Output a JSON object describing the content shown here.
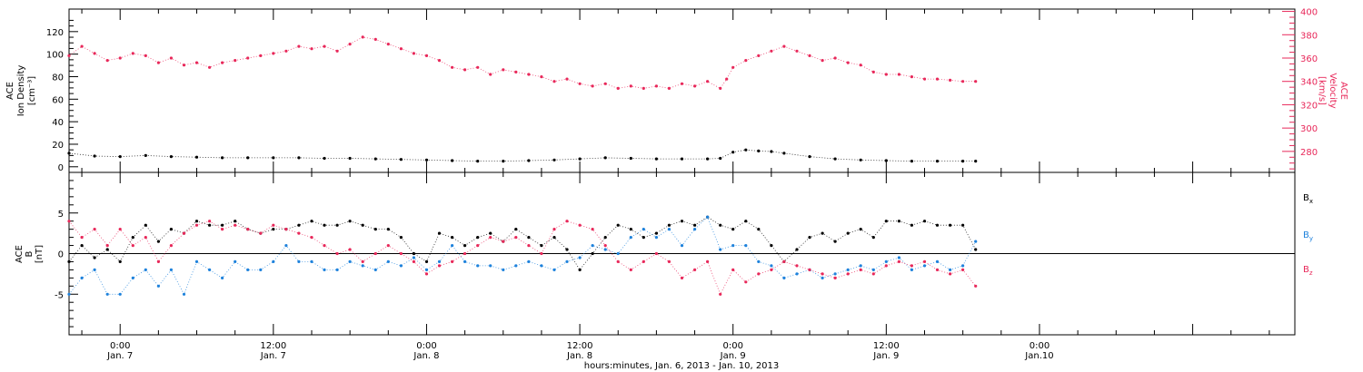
{
  "footer": {
    "xlabel": "hours:minutes, Jan.  6, 2013 - Jan. 10, 2013"
  },
  "colors": {
    "axes": "#000000",
    "density": "#000000",
    "velocity": "#e8285a",
    "bx": "#000000",
    "by": "#1e82dc",
    "bz": "#e8285a"
  },
  "chart_data": [
    {
      "type": "scatter",
      "x_units": "hours since 2013-01-06 00:00 UT",
      "x_range": [
        20.0,
        116.0
      ],
      "x_ticks": [
        {
          "x": 24,
          "time": "0:00",
          "date": "Jan. 7"
        },
        {
          "x": 36,
          "time": "12:00",
          "date": "Jan. 7"
        },
        {
          "x": 48,
          "time": "0:00",
          "date": "Jan. 8"
        },
        {
          "x": 60,
          "time": "12:00",
          "date": "Jan. 8"
        },
        {
          "x": 72,
          "time": "0:00",
          "date": "Jan. 9"
        },
        {
          "x": 84,
          "time": "12:00",
          "date": "Jan. 9"
        },
        {
          "x": 96,
          "time": "0:00",
          "date": "Jan.10"
        }
      ],
      "left_axis": {
        "label_lines": [
          "ACE",
          "Ion Density",
          "[cm⁻³]"
        ],
        "ylim": [
          -5,
          140
        ],
        "ticks": [
          0,
          20,
          40,
          60,
          80,
          100,
          120
        ],
        "tick_labels": [
          "0",
          "20",
          "40",
          "60",
          "80",
          "100",
          "120"
        ]
      },
      "right_axis": {
        "label_lines": [
          "ACE",
          "Velocity",
          "[km/s]"
        ],
        "ylim": [
          262,
          402
        ],
        "ticks": [
          280,
          300,
          320,
          340,
          360,
          380,
          400
        ],
        "tick_labels": [
          "280",
          "300",
          "320",
          "340",
          "360",
          "380",
          "400"
        ]
      },
      "series": [
        {
          "key": "density",
          "axis": "left",
          "color": "#000000",
          "x": [
            20.0,
            22.0,
            24.0,
            26.0,
            28.0,
            30.0,
            32.0,
            34.0,
            36.0,
            38.0,
            40.0,
            42.0,
            44.0,
            46.0,
            48.0,
            50.0,
            52.0,
            54.0,
            56.0,
            58.0,
            60.0,
            62.0,
            64.0,
            66.0,
            68.0,
            70.0,
            71.0,
            72.0,
            73.0,
            74.0,
            75.0,
            76.0,
            78.0,
            80.0,
            82.0,
            84.0,
            86.0,
            88.0,
            90.0,
            91.0
          ],
          "y": [
            12.0,
            9.5,
            9.0,
            10.0,
            9.0,
            8.5,
            8.0,
            8.0,
            8.0,
            8.0,
            7.5,
            7.5,
            7.0,
            6.5,
            6.0,
            5.5,
            5.0,
            5.0,
            5.5,
            6.0,
            7.0,
            8.0,
            7.5,
            7.0,
            7.0,
            7.0,
            7.5,
            13.0,
            15.0,
            14.0,
            13.5,
            12.0,
            9.0,
            7.0,
            6.0,
            5.5,
            5.0,
            5.0,
            5.0,
            5.0
          ]
        },
        {
          "key": "velocity",
          "axis": "right",
          "color": "#e8285a",
          "x": [
            20.0,
            21.0,
            22.0,
            23.0,
            24.0,
            25.0,
            26.0,
            27.0,
            28.0,
            29.0,
            30.0,
            31.0,
            32.0,
            33.0,
            34.0,
            35.0,
            36.0,
            37.0,
            38.0,
            39.0,
            40.0,
            41.0,
            42.0,
            43.0,
            44.0,
            45.0,
            46.0,
            47.0,
            48.0,
            49.0,
            50.0,
            51.0,
            52.0,
            53.0,
            54.0,
            55.0,
            56.0,
            57.0,
            58.0,
            59.0,
            60.0,
            61.0,
            62.0,
            63.0,
            64.0,
            65.0,
            66.0,
            67.0,
            68.0,
            69.0,
            70.0,
            71.0,
            71.5,
            72.0,
            73.0,
            74.0,
            75.0,
            76.0,
            77.0,
            78.0,
            79.0,
            80.0,
            81.0,
            82.0,
            83.0,
            84.0,
            85.0,
            86.0,
            87.0,
            88.0,
            89.0,
            90.0,
            91.0
          ],
          "y": [
            362,
            370,
            364,
            358,
            360,
            364,
            362,
            356,
            360,
            354,
            356,
            352,
            356,
            358,
            360,
            362,
            364,
            366,
            370,
            368,
            370,
            366,
            372,
            378,
            376,
            372,
            368,
            364,
            362,
            358,
            352,
            350,
            352,
            346,
            350,
            348,
            346,
            344,
            340,
            342,
            338,
            336,
            338,
            334,
            336,
            334,
            336,
            334,
            338,
            336,
            340,
            334,
            342,
            352,
            358,
            362,
            366,
            370,
            366,
            362,
            358,
            360,
            356,
            354,
            348,
            346,
            346,
            344,
            342,
            342,
            341,
            340,
            340
          ]
        }
      ]
    },
    {
      "type": "scatter",
      "x_units": "hours since 2013-01-06 00:00 UT",
      "x_range": [
        20.0,
        116.0
      ],
      "left_axis": {
        "label_lines": [
          "ACE",
          "B",
          "[nT]"
        ],
        "ylim": [
          -10,
          10
        ],
        "ticks": [
          -5,
          0,
          5
        ],
        "tick_labels": [
          "-5",
          "0",
          "5"
        ],
        "zero_line": true
      },
      "legend": {
        "placement": "right",
        "entries": [
          {
            "key": "bx",
            "label": "Bx",
            "base": "B",
            "sub": "x",
            "color": "#000000"
          },
          {
            "key": "by",
            "label": "By",
            "base": "B",
            "sub": "y",
            "color": "#1e82dc"
          },
          {
            "key": "bz",
            "label": "Bz",
            "base": "B",
            "sub": "z",
            "color": "#e8285a"
          }
        ]
      },
      "series": [
        {
          "key": "bx",
          "color": "#000000",
          "x": [
            20.0,
            21.0,
            22.0,
            23.0,
            24.0,
            25.0,
            26.0,
            27.0,
            28.0,
            29.0,
            30.0,
            31.0,
            32.0,
            33.0,
            34.0,
            35.0,
            36.0,
            37.0,
            38.0,
            39.0,
            40.0,
            41.0,
            42.0,
            43.0,
            44.0,
            45.0,
            46.0,
            47.0,
            48.0,
            49.0,
            50.0,
            51.0,
            52.0,
            53.0,
            54.0,
            55.0,
            56.0,
            57.0,
            58.0,
            59.0,
            60.0,
            61.0,
            62.0,
            63.0,
            64.0,
            65.0,
            66.0,
            67.0,
            68.0,
            69.0,
            70.0,
            71.0,
            72.0,
            73.0,
            74.0,
            75.0,
            76.0,
            77.0,
            78.0,
            79.0,
            80.0,
            81.0,
            82.0,
            83.0,
            84.0,
            85.0,
            86.0,
            87.0,
            88.0,
            89.0,
            90.0,
            91.0
          ],
          "y": [
            -1.0,
            1.0,
            -0.5,
            0.5,
            -1.0,
            2.0,
            3.5,
            1.5,
            3.0,
            2.5,
            4.0,
            3.5,
            3.5,
            4.0,
            3.0,
            2.5,
            3.0,
            3.0,
            3.5,
            4.0,
            3.5,
            3.5,
            4.0,
            3.5,
            3.0,
            3.0,
            2.0,
            0.0,
            -1.0,
            2.5,
            2.0,
            1.0,
            2.0,
            2.5,
            1.5,
            3.0,
            2.0,
            1.0,
            2.0,
            0.5,
            -2.0,
            0.0,
            2.0,
            3.5,
            3.0,
            2.0,
            2.5,
            3.5,
            4.0,
            3.5,
            4.5,
            3.5,
            3.0,
            4.0,
            3.0,
            1.0,
            -1.0,
            0.5,
            2.0,
            2.5,
            1.5,
            2.5,
            3.0,
            2.0,
            4.0,
            4.0,
            3.5,
            4.0,
            3.5,
            3.5,
            3.5,
            0.5
          ]
        },
        {
          "key": "by",
          "color": "#1e82dc",
          "x": [
            20.0,
            21.0,
            22.0,
            23.0,
            24.0,
            25.0,
            26.0,
            27.0,
            28.0,
            29.0,
            30.0,
            31.0,
            32.0,
            33.0,
            34.0,
            35.0,
            36.0,
            37.0,
            38.0,
            39.0,
            40.0,
            41.0,
            42.0,
            43.0,
            44.0,
            45.0,
            46.0,
            47.0,
            48.0,
            49.0,
            50.0,
            51.0,
            52.0,
            53.0,
            54.0,
            55.0,
            56.0,
            57.0,
            58.0,
            59.0,
            60.0,
            61.0,
            62.0,
            63.0,
            64.0,
            65.0,
            66.0,
            67.0,
            68.0,
            69.0,
            70.0,
            71.0,
            72.0,
            73.0,
            74.0,
            75.0,
            76.0,
            77.0,
            78.0,
            79.0,
            80.0,
            81.0,
            82.0,
            83.0,
            84.0,
            85.0,
            86.0,
            87.0,
            88.0,
            89.0,
            90.0,
            91.0
          ],
          "y": [
            -5.0,
            -3.0,
            -2.0,
            -5.0,
            -5.0,
            -3.0,
            -2.0,
            -4.0,
            -2.0,
            -5.0,
            -1.0,
            -2.0,
            -3.0,
            -1.0,
            -2.0,
            -2.0,
            -1.0,
            1.0,
            -1.0,
            -1.0,
            -2.0,
            -2.0,
            -1.0,
            -1.5,
            -2.0,
            -1.0,
            -1.5,
            -0.5,
            -2.0,
            -1.0,
            1.0,
            -1.0,
            -1.5,
            -1.5,
            -2.0,
            -1.5,
            -1.0,
            -1.5,
            -2.0,
            -1.0,
            -0.5,
            1.0,
            0.5,
            0.0,
            2.0,
            3.0,
            2.0,
            3.0,
            1.0,
            3.0,
            4.5,
            0.5,
            1.0,
            1.0,
            -1.0,
            -1.5,
            -3.0,
            -2.5,
            -2.0,
            -3.0,
            -2.5,
            -2.0,
            -1.5,
            -2.0,
            -1.0,
            -0.5,
            -2.0,
            -1.5,
            -1.0,
            -2.0,
            -1.5,
            1.5
          ]
        },
        {
          "key": "bz",
          "color": "#e8285a",
          "x": [
            20.0,
            21.0,
            22.0,
            23.0,
            24.0,
            25.0,
            26.0,
            27.0,
            28.0,
            29.0,
            30.0,
            31.0,
            32.0,
            33.0,
            34.0,
            35.0,
            36.0,
            37.0,
            38.0,
            39.0,
            40.0,
            41.0,
            42.0,
            43.0,
            44.0,
            45.0,
            46.0,
            47.0,
            48.0,
            49.0,
            50.0,
            51.0,
            52.0,
            53.0,
            54.0,
            55.0,
            56.0,
            57.0,
            58.0,
            59.0,
            60.0,
            61.0,
            62.0,
            63.0,
            64.0,
            65.0,
            66.0,
            67.0,
            68.0,
            69.0,
            70.0,
            71.0,
            72.0,
            73.0,
            74.0,
            75.0,
            76.0,
            77.0,
            78.0,
            79.0,
            80.0,
            81.0,
            82.0,
            83.0,
            84.0,
            85.0,
            86.0,
            87.0,
            88.0,
            89.0,
            90.0,
            91.0
          ],
          "y": [
            4.0,
            2.0,
            3.0,
            1.0,
            3.0,
            1.0,
            2.0,
            -1.0,
            1.0,
            2.5,
            3.5,
            4.0,
            3.0,
            3.5,
            3.0,
            2.5,
            3.5,
            3.0,
            2.5,
            2.0,
            1.0,
            0.0,
            0.5,
            -1.0,
            0.0,
            1.0,
            0.0,
            -1.0,
            -2.5,
            -1.5,
            -1.0,
            0.0,
            1.0,
            2.0,
            1.5,
            2.0,
            1.0,
            0.0,
            3.0,
            4.0,
            3.5,
            3.0,
            1.0,
            -1.0,
            -2.0,
            -1.0,
            0.0,
            -1.0,
            -3.0,
            -2.0,
            -1.0,
            -5.0,
            -2.0,
            -3.5,
            -2.5,
            -2.0,
            -1.0,
            -1.5,
            -2.0,
            -2.5,
            -3.0,
            -2.5,
            -2.0,
            -2.5,
            -1.5,
            -1.0,
            -1.5,
            -1.0,
            -2.0,
            -2.5,
            -2.0,
            -4.0
          ]
        }
      ]
    }
  ]
}
